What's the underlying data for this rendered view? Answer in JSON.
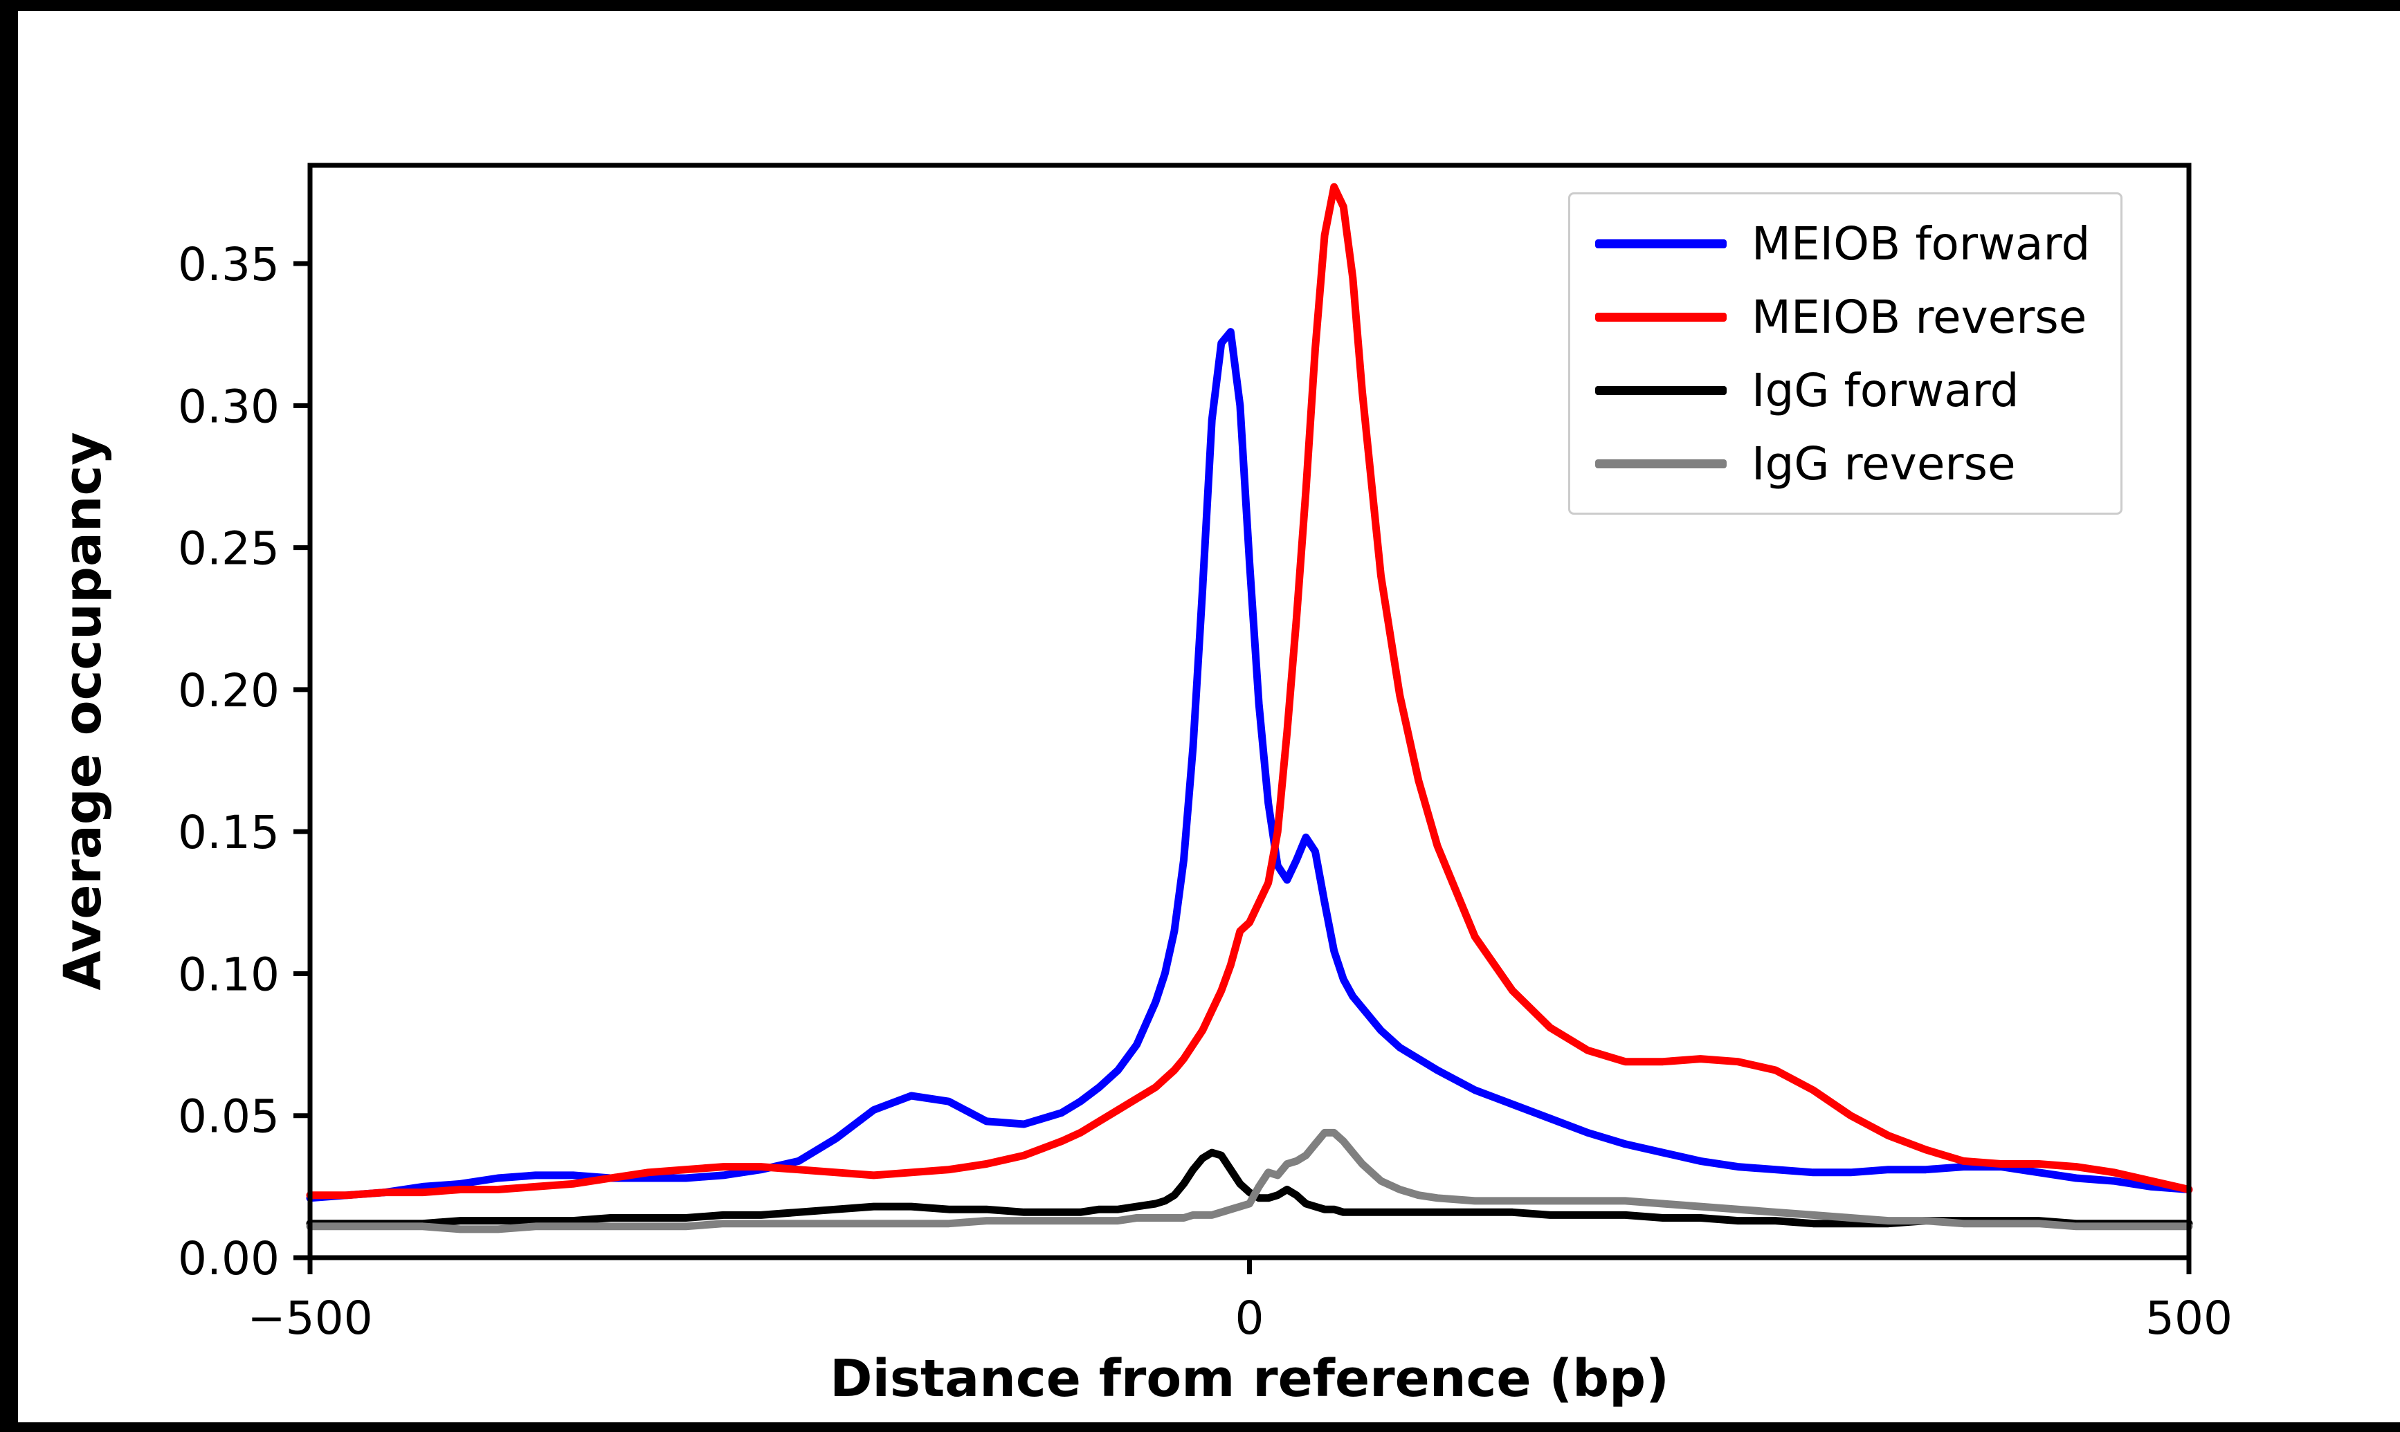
{
  "figure": {
    "xlabel": "Distance from reference (bp)",
    "ylabel": "Average occupancy"
  },
  "chart_data": {
    "type": "line",
    "title": "",
    "xlabel": "Distance from reference (bp)",
    "ylabel": "Average occupancy",
    "xlim": [
      -500,
      500
    ],
    "ylim": [
      0,
      0.3846
    ],
    "grid": false,
    "legend_position": "upper right",
    "xticks": {
      "values": [
        -500,
        0,
        500
      ],
      "labels": [
        "−500",
        "0",
        "500"
      ]
    },
    "yticks": {
      "values": [
        0.0,
        0.05,
        0.1,
        0.15,
        0.2,
        0.25,
        0.3,
        0.35
      ],
      "labels": [
        "0.00",
        "0.05",
        "0.10",
        "0.15",
        "0.20",
        "0.25",
        "0.30",
        "0.35"
      ]
    },
    "x": [
      -500,
      -480,
      -460,
      -440,
      -420,
      -400,
      -380,
      -360,
      -340,
      -320,
      -300,
      -280,
      -260,
      -240,
      -220,
      -200,
      -180,
      -160,
      -140,
      -120,
      -100,
      -90,
      -80,
      -70,
      -60,
      -50,
      -45,
      -40,
      -35,
      -30,
      -25,
      -20,
      -15,
      -10,
      -5,
      0,
      5,
      10,
      15,
      20,
      25,
      30,
      35,
      40,
      45,
      50,
      55,
      60,
      70,
      80,
      90,
      100,
      120,
      140,
      160,
      180,
      200,
      220,
      240,
      260,
      280,
      300,
      320,
      340,
      360,
      380,
      400,
      420,
      440,
      460,
      480,
      500
    ],
    "series": [
      {
        "name": "meiob-forward",
        "label": "MEIOB forward",
        "color": "#0000ff",
        "values": [
          0.021,
          0.022,
          0.023,
          0.025,
          0.026,
          0.028,
          0.029,
          0.029,
          0.028,
          0.028,
          0.028,
          0.029,
          0.031,
          0.034,
          0.042,
          0.052,
          0.057,
          0.055,
          0.048,
          0.047,
          0.051,
          0.055,
          0.06,
          0.066,
          0.075,
          0.09,
          0.1,
          0.115,
          0.14,
          0.18,
          0.235,
          0.295,
          0.322,
          0.326,
          0.3,
          0.245,
          0.195,
          0.16,
          0.138,
          0.133,
          0.14,
          0.148,
          0.143,
          0.125,
          0.108,
          0.098,
          0.092,
          0.088,
          0.08,
          0.074,
          0.07,
          0.066,
          0.059,
          0.054,
          0.049,
          0.044,
          0.04,
          0.037,
          0.034,
          0.032,
          0.031,
          0.03,
          0.03,
          0.031,
          0.031,
          0.032,
          0.032,
          0.03,
          0.028,
          0.027,
          0.025,
          0.024
        ]
      },
      {
        "name": "meiob-reverse",
        "label": "MEIOB reverse",
        "color": "#ff0000",
        "values": [
          0.022,
          0.022,
          0.023,
          0.023,
          0.024,
          0.024,
          0.025,
          0.026,
          0.028,
          0.03,
          0.031,
          0.032,
          0.032,
          0.031,
          0.03,
          0.029,
          0.03,
          0.031,
          0.033,
          0.036,
          0.041,
          0.044,
          0.048,
          0.052,
          0.056,
          0.06,
          0.063,
          0.066,
          0.07,
          0.075,
          0.08,
          0.087,
          0.094,
          0.103,
          0.115,
          0.118,
          0.125,
          0.132,
          0.15,
          0.185,
          0.225,
          0.27,
          0.32,
          0.36,
          0.377,
          0.37,
          0.345,
          0.305,
          0.24,
          0.198,
          0.168,
          0.145,
          0.113,
          0.094,
          0.081,
          0.073,
          0.069,
          0.069,
          0.07,
          0.069,
          0.066,
          0.059,
          0.05,
          0.043,
          0.038,
          0.034,
          0.033,
          0.033,
          0.032,
          0.03,
          0.027,
          0.024
        ]
      },
      {
        "name": "igg-forward",
        "label": "IgG forward",
        "color": "#000000",
        "values": [
          0.012,
          0.012,
          0.012,
          0.012,
          0.013,
          0.013,
          0.013,
          0.013,
          0.014,
          0.014,
          0.014,
          0.015,
          0.015,
          0.016,
          0.017,
          0.018,
          0.018,
          0.017,
          0.017,
          0.016,
          0.016,
          0.016,
          0.017,
          0.017,
          0.018,
          0.019,
          0.02,
          0.022,
          0.026,
          0.031,
          0.035,
          0.037,
          0.036,
          0.031,
          0.026,
          0.023,
          0.021,
          0.021,
          0.022,
          0.024,
          0.022,
          0.019,
          0.018,
          0.017,
          0.017,
          0.016,
          0.016,
          0.016,
          0.016,
          0.016,
          0.016,
          0.016,
          0.016,
          0.016,
          0.015,
          0.015,
          0.015,
          0.014,
          0.014,
          0.013,
          0.013,
          0.012,
          0.012,
          0.012,
          0.013,
          0.013,
          0.013,
          0.013,
          0.012,
          0.012,
          0.012,
          0.012
        ]
      },
      {
        "name": "igg-reverse",
        "label": "IgG reverse",
        "color": "#808080",
        "values": [
          0.011,
          0.011,
          0.011,
          0.011,
          0.01,
          0.01,
          0.011,
          0.011,
          0.011,
          0.011,
          0.011,
          0.012,
          0.012,
          0.012,
          0.012,
          0.012,
          0.012,
          0.012,
          0.013,
          0.013,
          0.013,
          0.013,
          0.013,
          0.013,
          0.014,
          0.014,
          0.014,
          0.014,
          0.014,
          0.015,
          0.015,
          0.015,
          0.016,
          0.017,
          0.018,
          0.019,
          0.025,
          0.03,
          0.029,
          0.033,
          0.034,
          0.036,
          0.04,
          0.044,
          0.044,
          0.041,
          0.037,
          0.033,
          0.027,
          0.024,
          0.022,
          0.021,
          0.02,
          0.02,
          0.02,
          0.02,
          0.02,
          0.019,
          0.018,
          0.017,
          0.016,
          0.015,
          0.014,
          0.013,
          0.013,
          0.012,
          0.012,
          0.012,
          0.011,
          0.011,
          0.011,
          0.011
        ]
      }
    ]
  }
}
